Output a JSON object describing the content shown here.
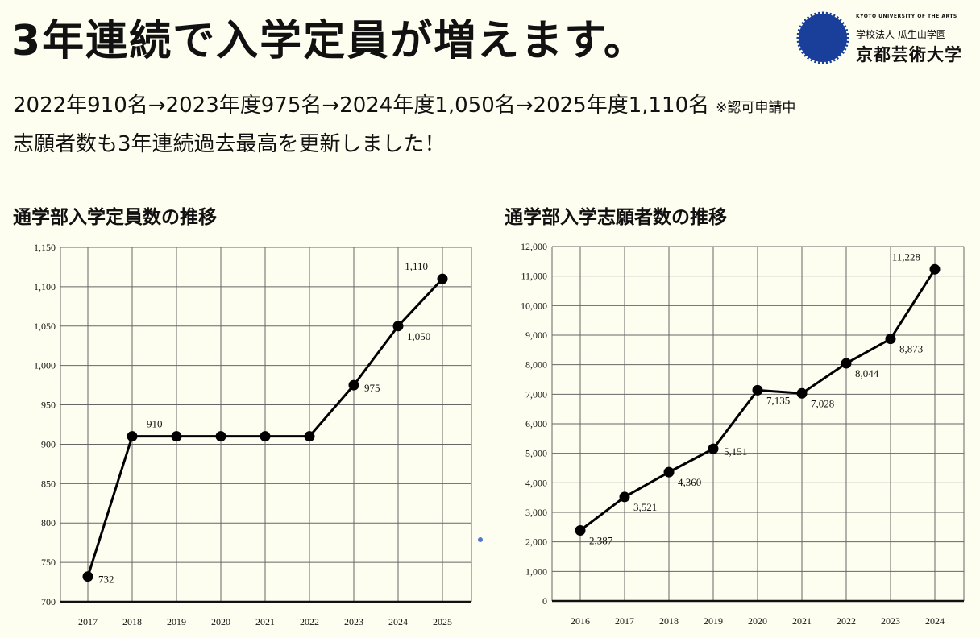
{
  "headline": "3年連続で入学定員が増えます。",
  "subline": {
    "text": "2022年910名→2023年度975名→2024年度1,050名→2025年度1,110名",
    "note": "※認可申請中"
  },
  "subline2": "志願者数も3年連続過去最高を更新しました！",
  "logo": {
    "english": "KYOTO UNIVERSITY OF THE ARTS",
    "corporation": "学校法人 瓜生山学園",
    "name": "京都芸術大学",
    "color": "#1a3f9a"
  },
  "chart_data": [
    {
      "type": "line",
      "title": "通学部入学定員数の推移",
      "categories": [
        "2017",
        "2018",
        "2019",
        "2020",
        "2021",
        "2022",
        "2023",
        "2024",
        "2025"
      ],
      "values": [
        732,
        910,
        910,
        910,
        910,
        910,
        975,
        1050,
        1110
      ],
      "data_labels": [
        "732",
        "910",
        "",
        "",
        "",
        "",
        "975",
        "1,050",
        "1,110"
      ],
      "label_pos": [
        "right",
        "above-right",
        "",
        "",
        "",
        "",
        "right",
        "below-right",
        "above-left"
      ],
      "ylim": [
        700,
        1150
      ],
      "yticks": [
        700,
        750,
        800,
        850,
        900,
        950,
        1000,
        1050,
        1100,
        1150
      ],
      "ytick_labels": [
        "700",
        "750",
        "800",
        "850",
        "900",
        "950",
        "1,000",
        "1,050",
        "1,100",
        "1,150"
      ],
      "grid": true
    },
    {
      "type": "line",
      "title": "通学部入学志願者数の推移",
      "categories": [
        "2016",
        "2017",
        "2018",
        "2019",
        "2020",
        "2021",
        "2022",
        "2023",
        "2024"
      ],
      "values": [
        2387,
        3521,
        4360,
        5151,
        7135,
        7028,
        8044,
        8873,
        11228
      ],
      "data_labels": [
        "2,387",
        "3,521",
        "4,360",
        "5,151",
        "7,135",
        "7,028",
        "8,044",
        "8,873",
        "11,228"
      ],
      "label_pos": [
        "below-right",
        "below-right",
        "below-right",
        "right",
        "below-right",
        "below-right",
        "below-right",
        "below-right",
        "above-left"
      ],
      "ylim": [
        0,
        12000
      ],
      "yticks": [
        0,
        1000,
        2000,
        3000,
        4000,
        5000,
        6000,
        7000,
        8000,
        9000,
        10000,
        11000,
        12000
      ],
      "ytick_labels": [
        "0",
        "1,000",
        "2,000",
        "3,000",
        "4,000",
        "5,000",
        "6,000",
        "7,000",
        "8,000",
        "9,000",
        "10,000",
        "11,000",
        "12,000"
      ],
      "grid": true
    }
  ]
}
